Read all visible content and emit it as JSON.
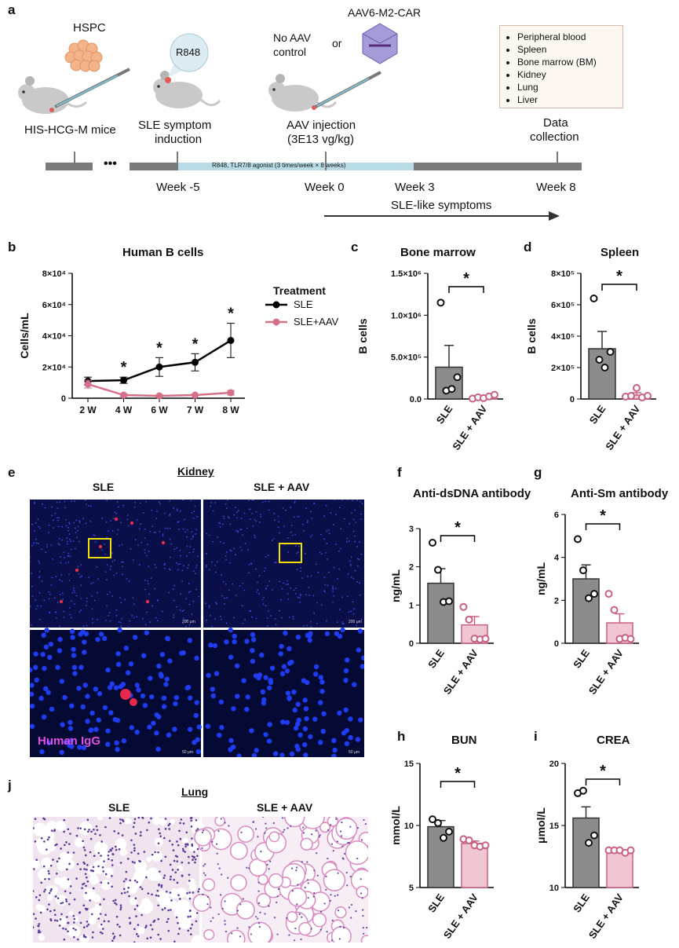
{
  "panels": {
    "a": "a",
    "b": "b",
    "c": "c",
    "d": "d",
    "e": "e",
    "f": "f",
    "g": "g",
    "h": "h",
    "i": "i",
    "j": "j"
  },
  "panel_a": {
    "hspc": "HSPC",
    "r848": "R848",
    "aav": "AAV6-M2-CAR",
    "no_aav": "No AAV",
    "control": "control",
    "or": "or",
    "mice": "HIS-HCG-M mice",
    "sle1": "SLE symptom",
    "sle2": "induction",
    "aav_inj1": "AAV injection",
    "aav_inj2": "(3E13 vg/kg)",
    "data1": "Data",
    "data2": "collection",
    "bar_text": "R848, TLR7/8 agonist (3 times/week × 8 weeks)",
    "dots": "•••",
    "weeks": [
      "Week -5",
      "Week 0",
      "Week 3",
      "Week 8"
    ],
    "arrow_label": "SLE-like symptoms",
    "collection": [
      "Peripheral blood",
      "Spleen",
      "Bone marrow (BM)",
      "Kidney",
      "Lung",
      "Liver"
    ],
    "colors": {
      "timeline": "#7a7a7a",
      "r848_bar": "#b7dce6",
      "mouse": "#c9c9c9",
      "hspc": "#f3b48a",
      "crystal": "#a49bd8"
    }
  },
  "panel_b": {
    "title": "Human B cells",
    "legend_title": "Treatment",
    "ylabel": "Cells/mL",
    "star": "*"
  },
  "panel_c": {
    "title": "Bone marrow",
    "ylabel": "B cells"
  },
  "panel_d": {
    "title": "Spleen",
    "ylabel": "B cells"
  },
  "panel_e": {
    "title": "Kidney",
    "col1": "SLE",
    "col2": "SLE + AAV",
    "stain": "Human IgG",
    "scale1": "200 μm",
    "scale2": "50 μm"
  },
  "panel_f": {
    "title": "Anti-dsDNA antibody",
    "ylabel": "ng/mL"
  },
  "panel_g": {
    "title": "Anti-Sm antibody",
    "ylabel": "ng/mL"
  },
  "panel_h": {
    "title": "BUN",
    "ylabel": "mmol/L"
  },
  "panel_i": {
    "title": "CREA",
    "ylabel": "μmol/L"
  },
  "panel_j": {
    "title": "Lung",
    "col1": "SLE",
    "col2": "SLE + AAV"
  },
  "chart_data": [
    {
      "id": "b",
      "type": "line",
      "title": "Human B cells",
      "xlabel": "",
      "ylabel": "Cells/mL",
      "categories": [
        "2 W",
        "4 W",
        "6 W",
        "7 W",
        "8 W"
      ],
      "yticks": [
        "0",
        "2×10⁴",
        "4×10⁴",
        "6×10⁴",
        "8×10⁴"
      ],
      "ylim": [
        0,
        80000
      ],
      "legend_title": "Treatment",
      "legend_position": "right",
      "series": [
        {
          "name": "SLE",
          "color": "#000000",
          "values": [
            11000,
            11500,
            20000,
            23000,
            37000
          ],
          "errors": [
            2500,
            2000,
            6000,
            5500,
            11000
          ]
        },
        {
          "name": "SLE+AAV",
          "color": "#d4708a",
          "values": [
            9000,
            2000,
            1500,
            2000,
            3500
          ],
          "errors": [
            2500,
            800,
            600,
            500,
            1500
          ]
        }
      ],
      "significance": [
        "",
        "*",
        "*",
        "*",
        "*"
      ]
    },
    {
      "id": "c",
      "type": "bar",
      "title": "Bone marrow",
      "ylabel": "B cells",
      "categories": [
        "SLE",
        "SLE + AAV"
      ],
      "ylim": [
        0,
        1500000
      ],
      "yticks": [
        "0.0",
        "5.0×10⁵",
        "1.0×10⁶",
        "1.5×10⁶"
      ],
      "values": [
        380000,
        10000
      ],
      "errors": [
        260000,
        5000
      ],
      "points": [
        [
          1150000,
          100000,
          120000,
          260000
        ],
        [
          5000,
          20000,
          10000,
          30000,
          50000
        ]
      ],
      "significance": "*"
    },
    {
      "id": "d",
      "type": "bar",
      "title": "Spleen",
      "ylabel": "B cells",
      "categories": [
        "SLE",
        "SLE + AAV"
      ],
      "ylim": [
        0,
        800000
      ],
      "yticks": [
        "0",
        "2×10⁵",
        "4×10⁵",
        "6×10⁵",
        "8×10⁵"
      ],
      "values": [
        320000,
        25000
      ],
      "errors": [
        110000,
        15000
      ],
      "points": [
        [
          640000,
          250000,
          200000,
          300000
        ],
        [
          15000,
          20000,
          70000,
          10000,
          20000
        ]
      ],
      "significance": "*"
    },
    {
      "id": "f",
      "type": "bar",
      "title": "Anti-dsDNA antibody",
      "ylabel": "ng/mL",
      "categories": [
        "SLE",
        "SLE + AAV"
      ],
      "ylim": [
        0,
        3
      ],
      "yticks": [
        "0",
        "1",
        "2",
        "3"
      ],
      "values": [
        1.57,
        0.48
      ],
      "errors": [
        0.38,
        0.22
      ],
      "points": [
        [
          2.63,
          1.92,
          1.08,
          1.1
        ],
        [
          0.95,
          0.62,
          0.12,
          0.1,
          0.12
        ]
      ],
      "significance": "*"
    },
    {
      "id": "g",
      "type": "bar",
      "title": "Anti-Sm antibody",
      "ylabel": "ng/mL",
      "categories": [
        "SLE",
        "SLE + AAV"
      ],
      "ylim": [
        0,
        6
      ],
      "yticks": [
        "0",
        "2",
        "4",
        "6"
      ],
      "values": [
        3.0,
        0.95
      ],
      "errors": [
        0.65,
        0.42
      ],
      "points": [
        [
          4.85,
          3.4,
          2.1,
          2.3
        ],
        [
          2.3,
          1.55,
          0.2,
          0.25,
          0.2
        ]
      ],
      "significance": "*"
    },
    {
      "id": "h",
      "type": "bar",
      "title": "BUN",
      "ylabel": "mmol/L",
      "categories": [
        "SLE",
        "SLE + AAV"
      ],
      "ylim": [
        5,
        15
      ],
      "yticks": [
        "5",
        "10",
        "15"
      ],
      "values": [
        9.9,
        8.55
      ],
      "errors": [
        0.5,
        0.2
      ],
      "points": [
        [
          10.5,
          10.2,
          9.0,
          9.5
        ],
        [
          8.9,
          8.8,
          8.4,
          8.3,
          8.4
        ]
      ],
      "significance": "*"
    },
    {
      "id": "i",
      "type": "bar",
      "title": "CREA",
      "ylabel": "μmol/L",
      "categories": [
        "SLE",
        "SLE + AAV"
      ],
      "ylim": [
        10,
        20
      ],
      "yticks": [
        "10",
        "15",
        "20"
      ],
      "values": [
        15.6,
        12.9
      ],
      "errors": [
        0.9,
        0.1
      ],
      "points": [
        [
          17.6,
          17.8,
          13.6,
          14.2
        ],
        [
          13.0,
          13.0,
          13.0,
          12.8,
          13.0
        ]
      ],
      "significance": "*"
    }
  ]
}
